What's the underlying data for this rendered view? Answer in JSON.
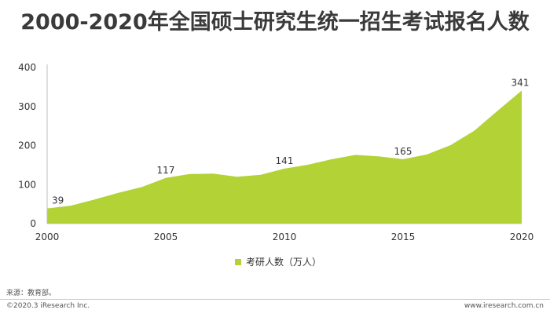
{
  "title": "2000-2020年全国硕士研究生统一招生考试报名人数",
  "colors": {
    "area": "#b2d235",
    "axis": "#bfbfbf",
    "text": "#333333"
  },
  "chart_data": {
    "type": "area",
    "title": "2000-2020年全国硕士研究生统一招生考试报名人数",
    "x": [
      2000,
      2001,
      2002,
      2003,
      2004,
      2005,
      2006,
      2007,
      2008,
      2009,
      2010,
      2011,
      2012,
      2013,
      2014,
      2015,
      2016,
      2017,
      2018,
      2019,
      2020
    ],
    "series": [
      {
        "name": "考研人数（万人）",
        "values": [
          39,
          46,
          62,
          79,
          94,
          117,
          127,
          128,
          120,
          125,
          141,
          151,
          165,
          176,
          172,
          165,
          177,
          201,
          238,
          290,
          341
        ]
      }
    ],
    "data_labels": [
      {
        "x": 2000,
        "text": "39"
      },
      {
        "x": 2005,
        "text": "117"
      },
      {
        "x": 2010,
        "text": "141"
      },
      {
        "x": 2015,
        "text": "165"
      },
      {
        "x": 2020,
        "text": "341"
      }
    ],
    "x_ticks": [
      "2000",
      "2005",
      "2010",
      "2015",
      "2020"
    ],
    "y_ticks": [
      "0",
      "100",
      "200",
      "300",
      "400"
    ],
    "ylim": [
      0,
      400
    ],
    "xlim": [
      2000,
      2020
    ],
    "xlabel": "",
    "ylabel": "",
    "grid": false,
    "legend_position": "bottom-center"
  },
  "legend": {
    "label": "考研人数（万人）"
  },
  "source": "来源：教育部。",
  "copyright": "©2020.3 iResearch Inc.",
  "website": "www.iresearch.com.cn"
}
